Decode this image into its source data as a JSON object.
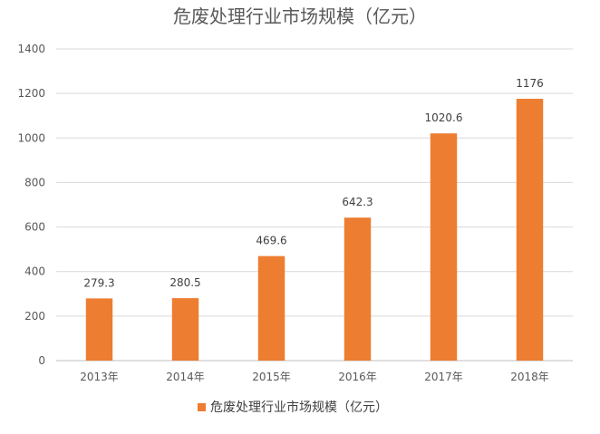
{
  "chart_data": {
    "type": "bar",
    "title": "危废处理行业市场规模（亿元）",
    "categories": [
      "2013年",
      "2014年",
      "2015年",
      "2016年",
      "2017年",
      "2018年"
    ],
    "series": [
      {
        "name": "危废处理行业市场规模（亿元）",
        "values": [
          279.3,
          280.5,
          469.6,
          642.3,
          1020.6,
          1176
        ],
        "labels": [
          "279.3",
          "280.5",
          "469.6",
          "642.3",
          "1020.6",
          "1176"
        ],
        "color": "#ED7D31"
      }
    ],
    "ylim": [
      0,
      1400
    ],
    "yticks": [
      0,
      200,
      400,
      600,
      800,
      1000,
      1200,
      1400
    ],
    "grid": true,
    "legend": "bottom-center",
    "xlabel": "",
    "ylabel": ""
  }
}
